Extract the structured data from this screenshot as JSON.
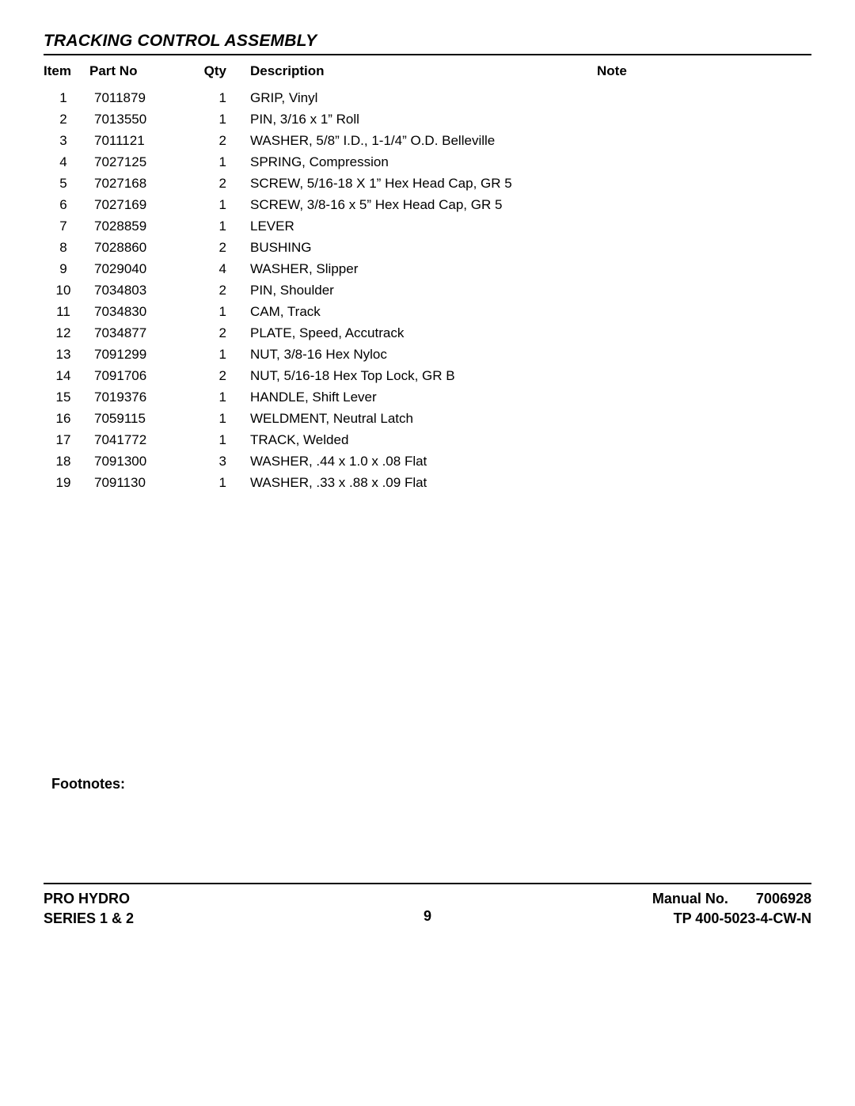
{
  "title": "TRACKING CONTROL ASSEMBLY",
  "columns": {
    "item": "Item",
    "part": "Part No",
    "qty": "Qty",
    "desc": "Description",
    "note": "Note"
  },
  "rows": [
    {
      "item": "1",
      "part": "7011879",
      "qty": "1",
      "desc": "GRIP, Vinyl",
      "note": ""
    },
    {
      "item": "2",
      "part": "7013550",
      "qty": "1",
      "desc": "PIN, 3/16 x 1” Roll",
      "note": ""
    },
    {
      "item": "3",
      "part": "7011121",
      "qty": "2",
      "desc": "WASHER, 5/8” I.D., 1-1/4” O.D. Belleville",
      "note": ""
    },
    {
      "item": "4",
      "part": "7027125",
      "qty": "1",
      "desc": "SPRING, Compression",
      "note": ""
    },
    {
      "item": "5",
      "part": "7027168",
      "qty": "2",
      "desc": "SCREW, 5/16-18 X 1” Hex Head Cap, GR 5",
      "note": ""
    },
    {
      "item": "6",
      "part": "7027169",
      "qty": "1",
      "desc": "SCREW, 3/8-16 x 5” Hex Head Cap, GR 5",
      "note": ""
    },
    {
      "item": "7",
      "part": "7028859",
      "qty": "1",
      "desc": "LEVER",
      "note": ""
    },
    {
      "item": "8",
      "part": "7028860",
      "qty": "2",
      "desc": "BUSHING",
      "note": ""
    },
    {
      "item": "9",
      "part": "7029040",
      "qty": "4",
      "desc": "WASHER, Slipper",
      "note": ""
    },
    {
      "item": "10",
      "part": "7034803",
      "qty": "2",
      "desc": "PIN, Shoulder",
      "note": ""
    },
    {
      "item": "11",
      "part": "7034830",
      "qty": "1",
      "desc": "CAM, Track",
      "note": ""
    },
    {
      "item": "12",
      "part": "7034877",
      "qty": "2",
      "desc": "PLATE, Speed, Accutrack",
      "note": ""
    },
    {
      "item": "13",
      "part": "7091299",
      "qty": "1",
      "desc": "NUT, 3/8-16 Hex Nyloc",
      "note": ""
    },
    {
      "item": "14",
      "part": "7091706",
      "qty": "2",
      "desc": "NUT, 5/16-18 Hex Top Lock, GR B",
      "note": ""
    },
    {
      "item": "15",
      "part": "7019376",
      "qty": "1",
      "desc": "HANDLE, Shift Lever",
      "note": ""
    },
    {
      "item": "16",
      "part": "7059115",
      "qty": "1",
      "desc": "WELDMENT, Neutral Latch",
      "note": ""
    },
    {
      "item": "17",
      "part": "7041772",
      "qty": "1",
      "desc": "TRACK, Welded",
      "note": ""
    },
    {
      "item": "18",
      "part": "7091300",
      "qty": "3",
      "desc": "WASHER, .44 x 1.0 x .08 Flat",
      "note": ""
    },
    {
      "item": "19",
      "part": "7091130",
      "qty": "1",
      "desc": "WASHER, .33 x .88 x .09 Flat",
      "note": ""
    }
  ],
  "footnotes_label": "Footnotes:",
  "footer": {
    "left_top": "PRO HYDRO",
    "left_bottom": "SERIES 1 & 2",
    "page_no": "9",
    "manual_label": "Manual No.",
    "manual_no": "7006928",
    "doc_no": "TP 400-5023-4-CW-N"
  }
}
